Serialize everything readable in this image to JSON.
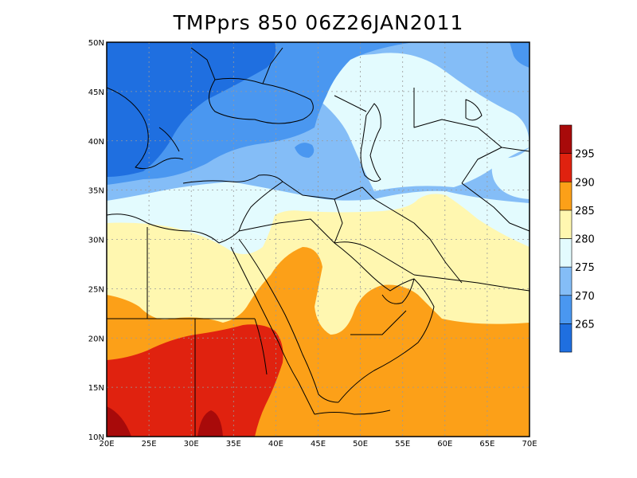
{
  "title": "TMPprs 850 06Z26JAN2011",
  "map": {
    "lon_range": [
      20,
      70
    ],
    "lat_range": [
      10,
      50
    ],
    "lon_ticks": [
      "20E",
      "25E",
      "30E",
      "35E",
      "40E",
      "45E",
      "50E",
      "55E",
      "60E",
      "65E",
      "70E"
    ],
    "lat_ticks": [
      "10N",
      "15N",
      "20N",
      "25N",
      "30N",
      "35N",
      "40N",
      "45N",
      "50N"
    ],
    "grid": true
  },
  "colorbar": {
    "labels": [
      "265",
      "270",
      "275",
      "280",
      "285",
      "290",
      "295"
    ],
    "colors": [
      "#1f6fe0",
      "#4a97f0",
      "#84bdf7",
      "#e3fbfe",
      "#fff7b0",
      "#fca018",
      "#e0220f",
      "#a80a0a"
    ]
  }
}
